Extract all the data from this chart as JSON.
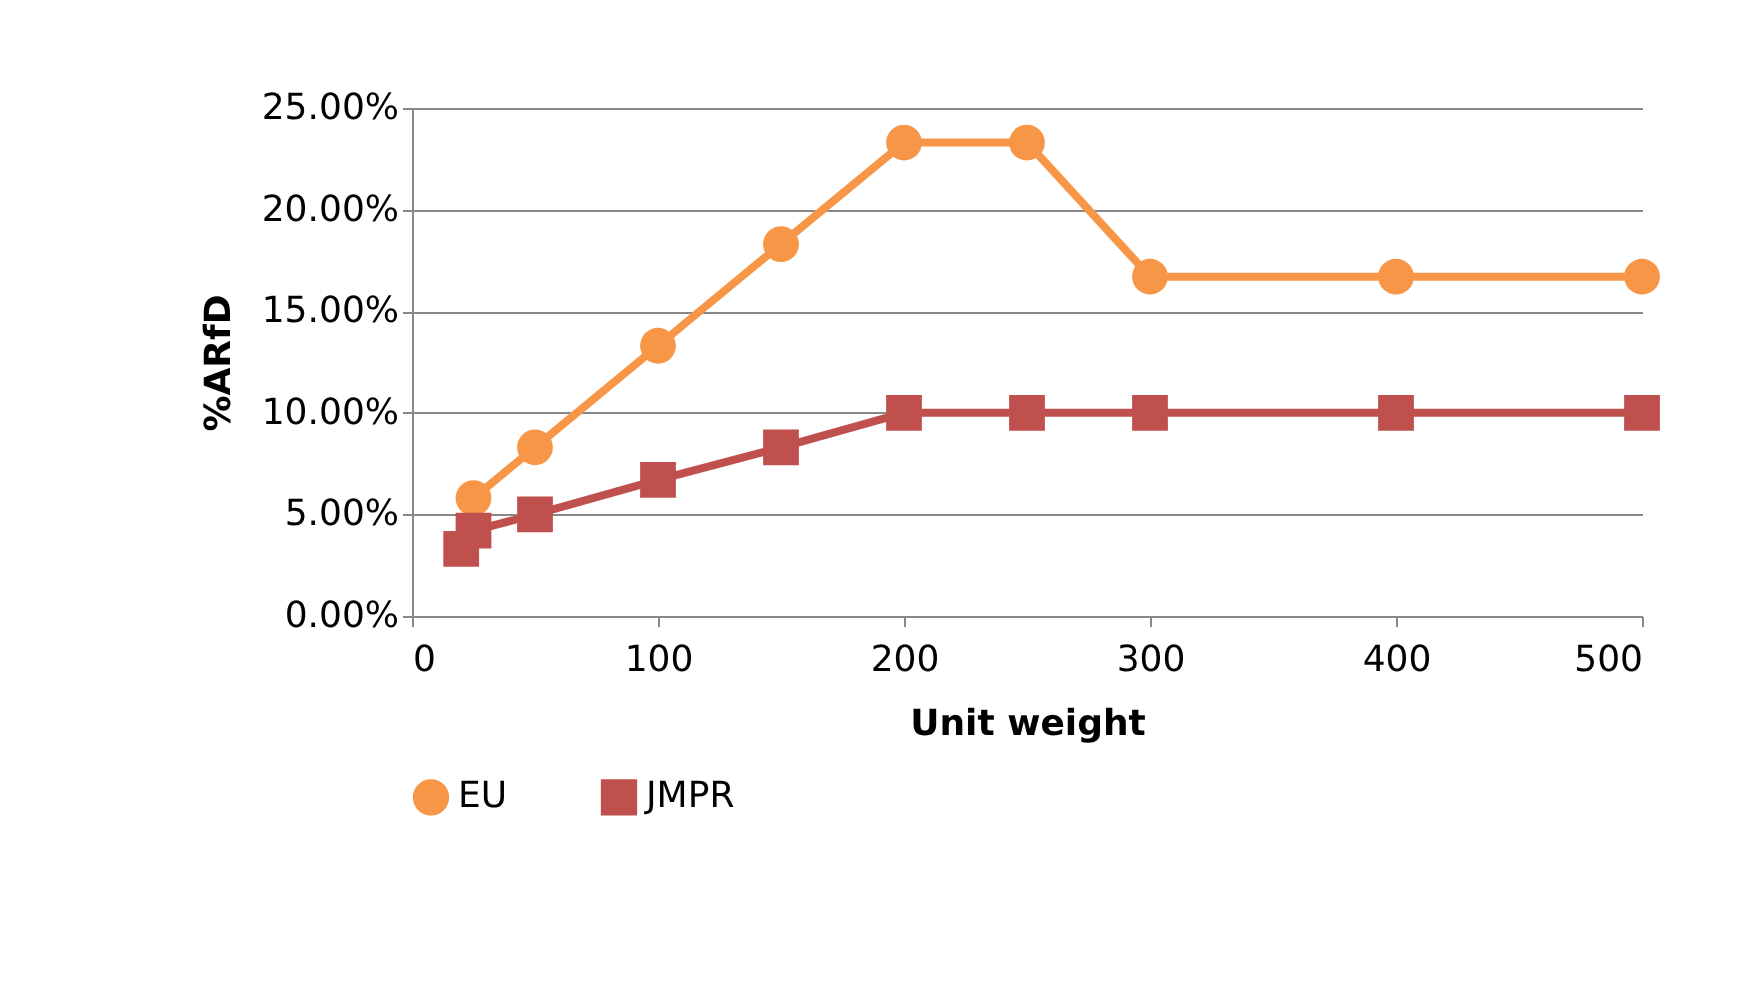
{
  "chart_data": {
    "type": "line",
    "xlabel": "Unit weight",
    "ylabel": "%ARfD",
    "series": [
      {
        "name": "EU",
        "color": "#f79646",
        "marker": "circle",
        "x": [
          25,
          50,
          100,
          150,
          200,
          250,
          300,
          400,
          500
        ],
        "values": [
          5.8,
          8.3,
          13.3,
          18.3,
          23.3,
          23.3,
          16.7,
          16.7,
          16.7
        ]
      },
      {
        "name": "JMPR",
        "color": "#c0504d",
        "marker": "square",
        "x": [
          20,
          25,
          50,
          100,
          150,
          200,
          250,
          300,
          400,
          500
        ],
        "values": [
          3.3,
          4.2,
          5.0,
          6.7,
          8.3,
          10.0,
          10.0,
          10.0,
          10.0,
          10.0
        ]
      }
    ],
    "xlim": [
      0,
      500
    ],
    "xticks": [
      0,
      100,
      200,
      300,
      400,
      500
    ],
    "ylim": [
      0,
      25
    ],
    "yticks": [
      {
        "value": 0,
        "label": "0.00%"
      },
      {
        "value": 5,
        "label": "5.00%"
      },
      {
        "value": 10,
        "label": "10.00%"
      },
      {
        "value": 15,
        "label": "15.00%"
      },
      {
        "value": 20,
        "label": "20.00%"
      },
      {
        "value": 25,
        "label": "25.00%"
      }
    ],
    "grid": "y",
    "legend": "bottom",
    "line_style": "solid"
  }
}
